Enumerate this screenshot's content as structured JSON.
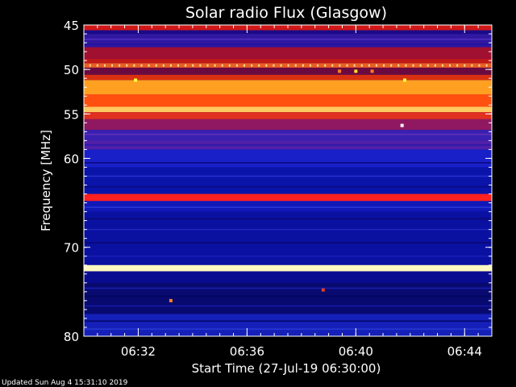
{
  "chart_data": {
    "type": "heatmap",
    "title": "Solar radio Flux (Glasgow)",
    "xlabel": "Start Time (27-Jul-19 06:30:00)",
    "ylabel": "Frequency [MHz]",
    "xlim": [
      0,
      15
    ],
    "ylim": [
      45,
      80
    ],
    "x_ticks": [
      {
        "label": "06:32",
        "value": 2
      },
      {
        "label": "06:36",
        "value": 6
      },
      {
        "label": "06:40",
        "value": 10
      },
      {
        "label": "06:44",
        "value": 14
      }
    ],
    "y_ticks": [
      {
        "label": "45",
        "value": 45
      },
      {
        "label": "50",
        "value": 50
      },
      {
        "label": "55",
        "value": 55
      },
      {
        "label": "60",
        "value": 60
      },
      {
        "label": "70",
        "value": 70
      },
      {
        "label": "80",
        "value": 80
      }
    ],
    "bands": [
      {
        "from": 45.0,
        "to": 45.6,
        "color": "#d01818"
      },
      {
        "from": 45.6,
        "to": 46.0,
        "color": "#1a0a88"
      },
      {
        "from": 46.0,
        "to": 47.5,
        "color": "#3018a0"
      },
      {
        "from": 47.5,
        "to": 48.8,
        "color": "#a01030"
      },
      {
        "from": 48.8,
        "to": 49.3,
        "color": "#c01818"
      },
      {
        "from": 49.3,
        "to": 49.8,
        "color": "#e86020"
      },
      {
        "from": 49.8,
        "to": 50.6,
        "color": "#6a0a40"
      },
      {
        "from": 50.6,
        "to": 51.2,
        "color": "#d83010"
      },
      {
        "from": 51.2,
        "to": 52.8,
        "color": "#ffa020"
      },
      {
        "from": 52.8,
        "to": 54.2,
        "color": "#ff5010"
      },
      {
        "from": 54.2,
        "to": 54.8,
        "color": "#ffc860"
      },
      {
        "from": 54.8,
        "to": 55.6,
        "color": "#e03020"
      },
      {
        "from": 55.6,
        "to": 56.8,
        "color": "#901860"
      },
      {
        "from": 56.8,
        "to": 58.0,
        "color": "#3a20b0"
      },
      {
        "from": 58.0,
        "to": 59.0,
        "color": "#5020a8"
      },
      {
        "from": 59.0,
        "to": 61.0,
        "color": "#1a20c8"
      },
      {
        "from": 61.0,
        "to": 64.0,
        "color": "#0a14a8"
      },
      {
        "from": 64.0,
        "to": 64.8,
        "color": "#ff2020"
      },
      {
        "from": 64.8,
        "to": 66.0,
        "color": "#1018b8"
      },
      {
        "from": 66.0,
        "to": 72.0,
        "color": "#0a10a0"
      },
      {
        "from": 72.0,
        "to": 72.7,
        "color": "#fff8c0"
      },
      {
        "from": 72.7,
        "to": 74.0,
        "color": "#0a0c90"
      },
      {
        "from": 74.0,
        "to": 77.5,
        "color": "#080a70"
      },
      {
        "from": 77.5,
        "to": 80.0,
        "color": "#1420b8"
      }
    ],
    "stripes": [
      {
        "freq": 46.6,
        "color": "#5030c0"
      },
      {
        "freq": 47.2,
        "color": "#2010a0"
      },
      {
        "freq": 57.3,
        "color": "#6030b8"
      },
      {
        "freq": 58.5,
        "color": "#2a18a8"
      },
      {
        "freq": 60.5,
        "color": "#0a0880"
      },
      {
        "freq": 62.0,
        "color": "#2630d0"
      },
      {
        "freq": 63.2,
        "color": "#0a0a80"
      },
      {
        "freq": 65.5,
        "color": "#2a38d8"
      },
      {
        "freq": 66.8,
        "color": "#0a0a78"
      },
      {
        "freq": 68.0,
        "color": "#2028c0"
      },
      {
        "freq": 69.5,
        "color": "#080870"
      },
      {
        "freq": 71.0,
        "color": "#1a20b8"
      },
      {
        "freq": 74.6,
        "color": "#1a1cb0"
      },
      {
        "freq": 75.5,
        "color": "#05055a"
      },
      {
        "freq": 76.6,
        "color": "#1518a8"
      },
      {
        "freq": 78.3,
        "color": "#05086a"
      },
      {
        "freq": 79.2,
        "color": "#2838d0"
      }
    ],
    "events": [
      {
        "t": 1.9,
        "freq": 51.2,
        "color": "#ffff40"
      },
      {
        "t": 11.8,
        "freq": 51.2,
        "color": "#ffff40"
      },
      {
        "t": 10.0,
        "freq": 50.2,
        "color": "#ffe020"
      },
      {
        "t": 9.4,
        "freq": 50.2,
        "color": "#ff8020"
      },
      {
        "t": 10.6,
        "freq": 50.2,
        "color": "#ff8020"
      },
      {
        "t": 3.2,
        "freq": 76.0,
        "color": "#ff8020"
      },
      {
        "t": 8.8,
        "freq": 74.8,
        "color": "#e04020"
      },
      {
        "t": 11.7,
        "freq": 56.3,
        "color": "#ffffff"
      }
    ]
  },
  "footer": {
    "updated": "Updated Sun Aug  4 15:31:10 2019"
  }
}
